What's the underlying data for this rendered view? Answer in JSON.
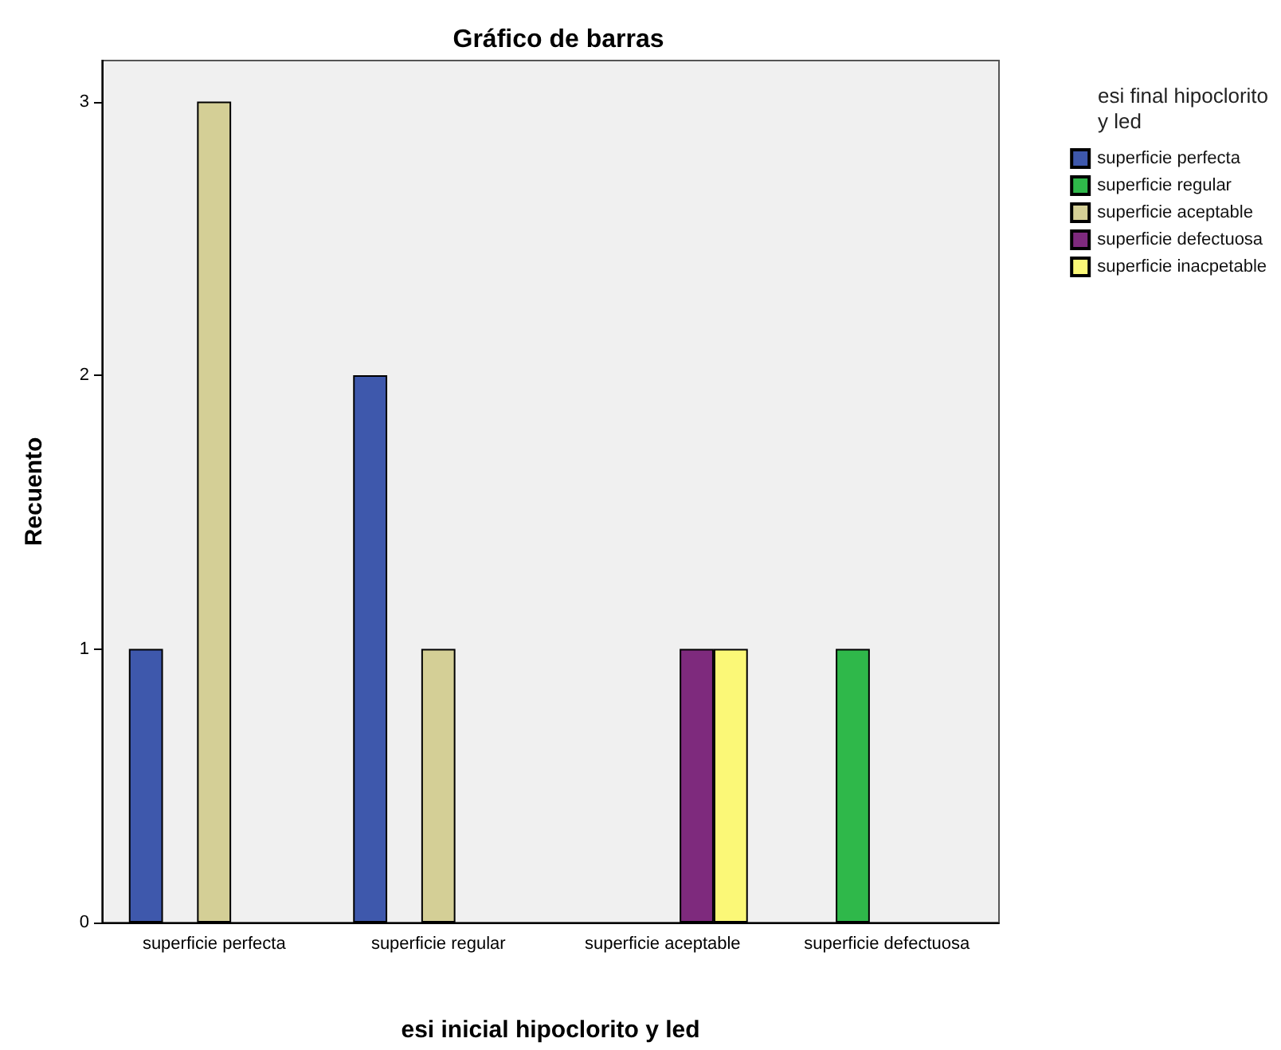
{
  "chart_data": {
    "type": "bar",
    "title": "Gráfico de barras",
    "xlabel": "esi inicial hipoclorito y led",
    "ylabel": "Recuento",
    "legend_title": "esi final hipoclorito y led",
    "categories": [
      "superficie perfecta",
      "superficie regular",
      "superficie aceptable",
      "superficie defectuosa"
    ],
    "series": [
      {
        "name": "superficie perfecta",
        "color": "#3e58ac",
        "values": [
          1,
          2,
          null,
          null
        ]
      },
      {
        "name": "superficie regular",
        "color": "#2fb84a",
        "values": [
          null,
          null,
          null,
          1
        ]
      },
      {
        "name": "superficie aceptable",
        "color": "#d4cf96",
        "values": [
          3,
          1,
          null,
          null
        ]
      },
      {
        "name": "superficie defectuosa",
        "color": "#7e2a7d",
        "values": [
          null,
          null,
          1,
          null
        ]
      },
      {
        "name": "superficie inacpetable",
        "color": "#fbf877",
        "values": [
          null,
          null,
          1,
          null
        ]
      }
    ],
    "ylim": [
      0,
      3.15
    ],
    "yticks": [
      0,
      1,
      2,
      3
    ],
    "grid": false,
    "legend": "top right"
  }
}
